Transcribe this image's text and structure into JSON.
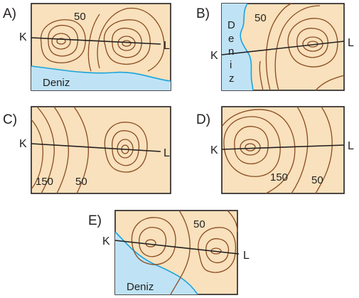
{
  "panels": [
    {
      "id": "A",
      "label": "A)",
      "k": "K",
      "l": "L",
      "values": [
        "50"
      ],
      "sea": "Deniz"
    },
    {
      "id": "B",
      "label": "B)",
      "k": "K",
      "l": "L",
      "values": [
        "50"
      ],
      "sea_letters": [
        "D",
        "e",
        "n",
        "i",
        "z"
      ]
    },
    {
      "id": "C",
      "label": "C)",
      "k": "K",
      "l": "L",
      "values": [
        "150",
        "50"
      ]
    },
    {
      "id": "D",
      "label": "D)",
      "k": "K",
      "l": "L",
      "values": [
        "150",
        "50"
      ]
    },
    {
      "id": "E",
      "label": "E)",
      "k": "K",
      "l": "L",
      "values": [
        "50"
      ],
      "sea": "Deniz"
    }
  ]
}
